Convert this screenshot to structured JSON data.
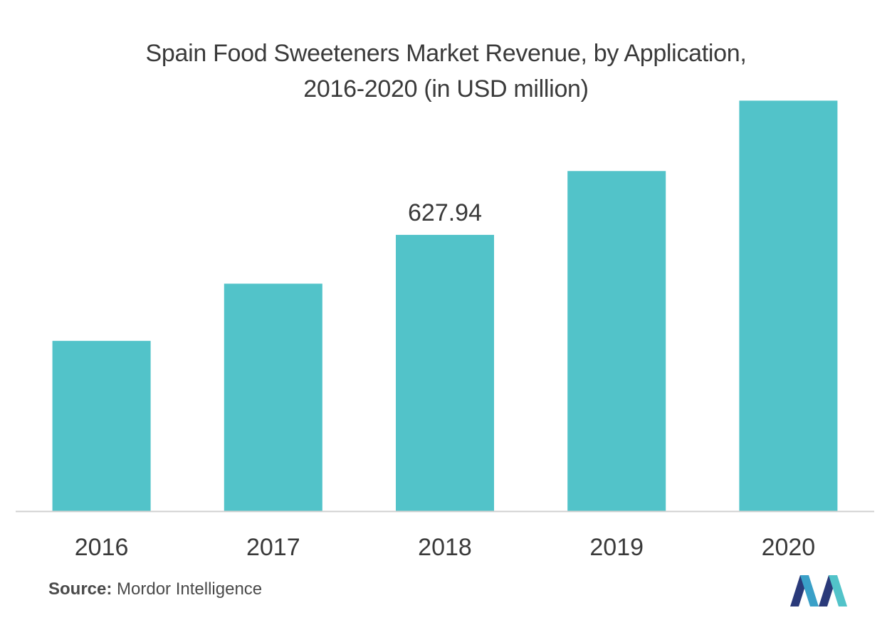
{
  "chart_data": {
    "type": "bar",
    "title_line1": "Spain Food Sweeteners Market Revenue, by Application,",
    "title_line2": "2016-2020 (in USD million)",
    "categories": [
      "2016",
      "2017",
      "2018",
      "2019",
      "2020"
    ],
    "values": [
      387,
      517,
      627.94,
      773,
      933
    ],
    "data_labels": [
      "",
      "",
      "627.94",
      "",
      ""
    ],
    "ylim": [
      0,
      1000
    ],
    "grid": false,
    "bar_color": "#52c3c9",
    "axis_color": "#d0d0d0"
  },
  "source": {
    "label": "Source:",
    "text": "Mordor Intelligence"
  },
  "logo": {
    "icon": "mordor-intelligence-logo",
    "colors": [
      "#2a3a7a",
      "#3aa0c8",
      "#52c3c9"
    ]
  }
}
